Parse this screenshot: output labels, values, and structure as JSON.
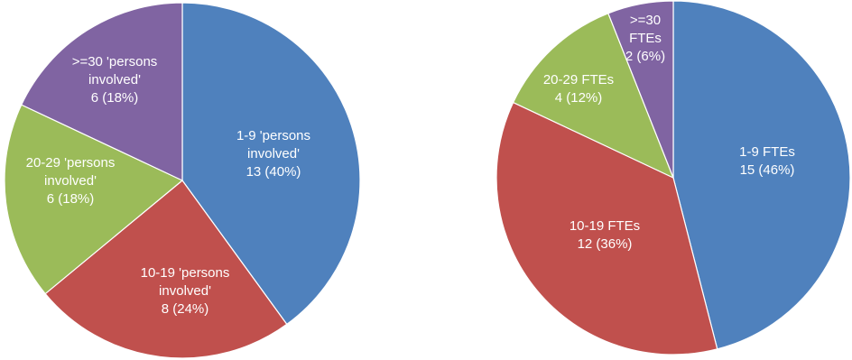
{
  "chart_data": [
    {
      "type": "pie",
      "colors": [
        "#4F81BD",
        "#C0504D",
        "#9BBB59",
        "#8064A2"
      ],
      "slices": [
        {
          "lines": [
            "1-9 'persons",
            "involved'",
            "13 (40%)"
          ],
          "value": 13,
          "percent": 40
        },
        {
          "lines": [
            "10-19 'persons",
            "involved'",
            "8 (24%)"
          ],
          "value": 8,
          "percent": 24
        },
        {
          "lines": [
            "20-29 'persons",
            "involved'",
            "6 (18%)"
          ],
          "value": 6,
          "percent": 18
        },
        {
          "lines": [
            ">=30 'persons",
            "involved'",
            "6 (18%)"
          ],
          "value": 6,
          "percent": 18
        }
      ]
    },
    {
      "type": "pie",
      "colors": [
        "#4F81BD",
        "#C0504D",
        "#9BBB59",
        "#8064A2"
      ],
      "slices": [
        {
          "lines": [
            "1-9 FTEs",
            "15 (46%)"
          ],
          "value": 15,
          "percent": 46
        },
        {
          "lines": [
            "10-19 FTEs",
            "12 (36%)"
          ],
          "value": 12,
          "percent": 36
        },
        {
          "lines": [
            "20-29 FTEs",
            "4 (12%)"
          ],
          "value": 4,
          "percent": 12
        },
        {
          "lines": [
            ">=30",
            "FTEs",
            "2 (6%)"
          ],
          "value": 2,
          "percent": 6
        }
      ]
    }
  ]
}
